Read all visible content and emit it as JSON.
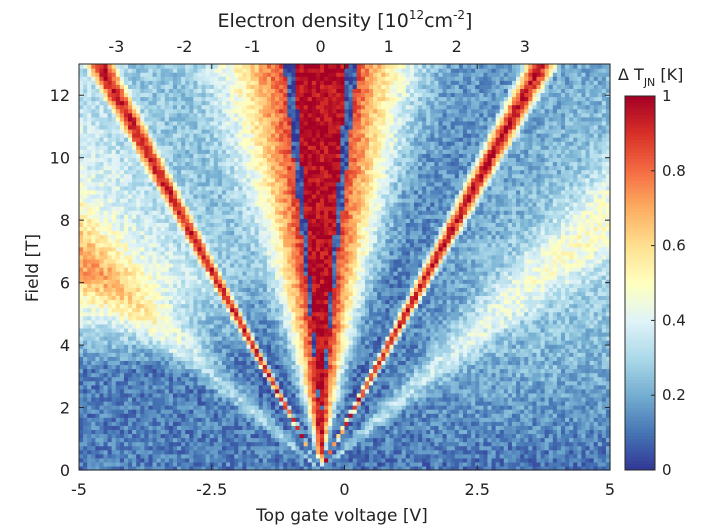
{
  "chart_data": {
    "type": "heatmap",
    "title": "",
    "xlabel": "Top gate voltage [V]",
    "ylabel": "Field [T]",
    "top_xlabel": "Electron density [10",
    "top_xlabel_sup": "12",
    "top_xlabel_mid": "cm",
    "top_xlabel_sup2": "-2",
    "top_xlabel_end": "]",
    "xlim": [
      -5,
      5
    ],
    "ylim": [
      0,
      13
    ],
    "x_ticks": [
      -5,
      -2.5,
      0,
      2.5,
      5
    ],
    "x_tick_labels": [
      "-5",
      "-2.5",
      "0",
      "2.5",
      "5"
    ],
    "y_ticks": [
      0,
      2,
      4,
      6,
      8,
      10,
      12
    ],
    "y_tick_labels": [
      "0",
      "2",
      "4",
      "6",
      "8",
      "10",
      "12"
    ],
    "top_ticks_density": [
      -3,
      -2,
      -1,
      0,
      1,
      2,
      3
    ],
    "top_tick_labels": [
      "-3",
      "-2",
      "-1",
      "0",
      "1",
      "2",
      "3"
    ],
    "density_per_volt": 0.78,
    "charge_neutrality_voltage": -0.45,
    "colorbar": {
      "label_prefix": "Δ T",
      "label_sub": "JN",
      "label_suffix": " [K]",
      "range": [
        0,
        1
      ],
      "ticks": [
        0,
        0.2,
        0.4,
        0.6,
        0.8,
        1
      ],
      "tick_labels": [
        "0",
        "0.2",
        "0.4",
        "0.6",
        "0.8",
        "1"
      ],
      "colormap": [
        "#313695",
        "#4575b4",
        "#74add1",
        "#abd9e9",
        "#e0f3f8",
        "#ffffbf",
        "#fee090",
        "#fdae61",
        "#f46d43",
        "#d73027",
        "#a50026"
      ]
    },
    "features": {
      "landau_fan_center_V": -0.45,
      "high_signal_core_halfwidth_V_at_13T": 0.55,
      "hole_side_background_high_field": 0.62,
      "electron_side_background_high_field": 0.18,
      "low_field_background": 0.12
    }
  }
}
